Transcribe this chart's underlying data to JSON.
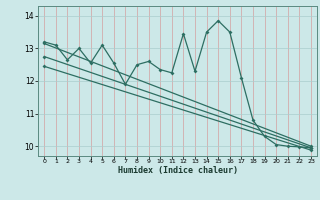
{
  "xlabel": "Humidex (Indice chaleur)",
  "xlim_min": -0.5,
  "xlim_max": 23.5,
  "ylim_min": 9.7,
  "ylim_max": 14.3,
  "xticks": [
    0,
    1,
    2,
    3,
    4,
    5,
    6,
    7,
    8,
    9,
    10,
    11,
    12,
    13,
    14,
    15,
    16,
    17,
    18,
    19,
    20,
    21,
    22,
    23
  ],
  "yticks": [
    10,
    11,
    12,
    13,
    14
  ],
  "bg_color": "#cce8e8",
  "grid_color": "#aacece",
  "line_color": "#2d6e62",
  "series1_x": [
    0,
    1,
    2,
    3,
    4,
    5,
    6,
    7,
    8,
    9,
    10,
    11,
    12,
    13,
    14,
    15,
    16,
    17,
    18,
    19,
    20,
    21,
    22,
    23
  ],
  "series1_y": [
    13.2,
    13.1,
    12.65,
    13.0,
    12.55,
    13.1,
    12.55,
    11.9,
    12.5,
    12.6,
    12.35,
    12.25,
    13.45,
    12.3,
    13.5,
    13.85,
    13.5,
    12.1,
    10.8,
    10.3,
    10.05,
    10.0,
    9.98,
    9.95
  ],
  "series2_x": [
    0,
    23
  ],
  "series2_y": [
    13.15,
    10.0
  ],
  "series3_x": [
    0,
    23
  ],
  "series3_y": [
    12.75,
    9.95
  ],
  "series4_x": [
    0,
    23
  ],
  "series4_y": [
    12.45,
    9.88
  ]
}
